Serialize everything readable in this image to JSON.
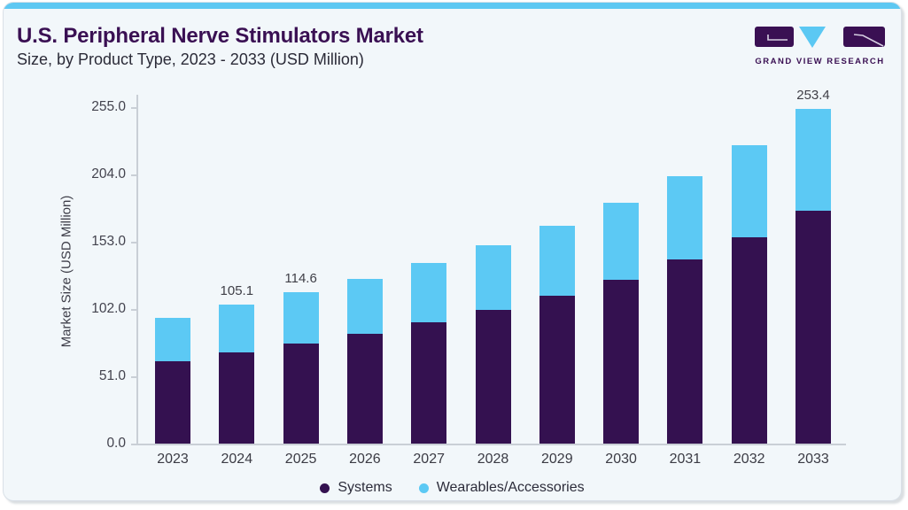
{
  "page": {
    "title": "U.S. Peripheral Nerve Stimulators Market",
    "subtitle": "Size, by Product Type, 2023 - 2033 (USD Million)"
  },
  "logo": {
    "text": "GRAND VIEW RESEARCH",
    "purple": "#3a1053",
    "blue": "#5bc8f3"
  },
  "chart_data": {
    "type": "bar",
    "stacked": true,
    "title": "U.S. Peripheral Nerve Stimulators Market Size, by Product Type, 2023 - 2033 (USD Million)",
    "categories": [
      "2023",
      "2024",
      "2025",
      "2026",
      "2027",
      "2028",
      "2029",
      "2030",
      "2031",
      "2032",
      "2033"
    ],
    "series": [
      {
        "name": "Systems",
        "color": "#341150",
        "values": [
          62.7,
          69.0,
          76.0,
          83.3,
          91.6,
          101.5,
          112.0,
          124.2,
          139.4,
          156.2,
          176.3
        ]
      },
      {
        "name": "Wearables/Accessories",
        "color": "#5cc9f4",
        "values": [
          32.5,
          36.1,
          38.6,
          41.7,
          45.1,
          48.6,
          53.4,
          58.4,
          63.4,
          69.7,
          77.1
        ]
      }
    ],
    "totals": [
      95.2,
      105.1,
      114.6,
      125.0,
      136.7,
      150.1,
      165.4,
      182.6,
      202.8,
      225.9,
      253.4
    ],
    "data_labels": {
      "2024": "105.1",
      "2025": "114.6",
      "2033": "253.4"
    },
    "ylabel": "Market Size (USD Million)",
    "xlabel": "",
    "ylim": [
      0,
      255
    ],
    "yticks": [
      0,
      51,
      102,
      153,
      204,
      255
    ],
    "ytick_labels": [
      "0.0",
      "51.0",
      "102.0",
      "153.0",
      "204.0",
      "255.0"
    ],
    "grid": false,
    "legend_position": "bottom"
  },
  "legend": {
    "items": [
      {
        "label": "Systems",
        "color": "#341150"
      },
      {
        "label": "Wearables/Accessories",
        "color": "#5cc9f4"
      }
    ]
  }
}
